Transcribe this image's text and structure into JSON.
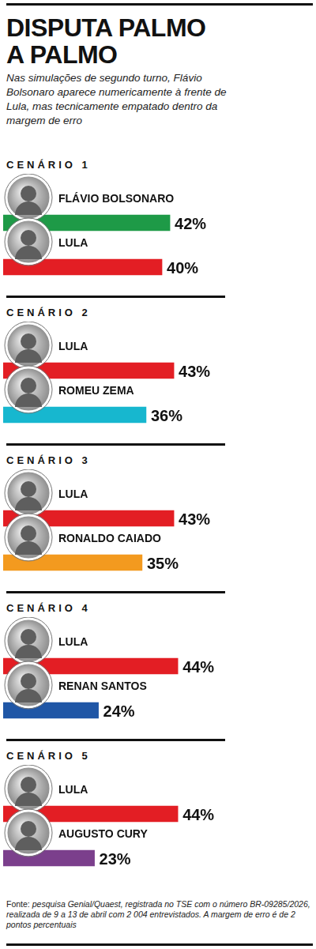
{
  "title": "DISPUTA PALMO A PALMO",
  "subtitle": "Nas simulações de segundo turno, Flávio Bolsonaro aparece numericamente à frente de Lula, mas tecnicamente empatado dentro da margem de erro",
  "footer": {
    "label": "Fonte:",
    "text": "pesquisa Genial/Quaest, registrada no TSE com o número BR-09285/2026, realizada de 9 a 13 de abril com 2 004 entrevistados. A margem de erro é de 2 pontos percentuais"
  },
  "chart_data": [
    {
      "type": "bar",
      "title": "CENÁRIO 1",
      "orientation": "horizontal",
      "categories": [
        "FLÁVIO BOLSONARO",
        "LULA"
      ],
      "values": [
        42,
        40
      ],
      "value_labels": [
        "42%",
        "40%"
      ],
      "colors": [
        "#1e9a47",
        "#e31e24"
      ],
      "xlim": [
        0,
        78
      ],
      "grid": false,
      "tick_labels": false,
      "data_labels": true
    },
    {
      "type": "bar",
      "title": "CENÁRIO 2",
      "orientation": "horizontal",
      "categories": [
        "LULA",
        "ROMEU ZEMA"
      ],
      "values": [
        43,
        36
      ],
      "value_labels": [
        "43%",
        "36%"
      ],
      "colors": [
        "#e31e24",
        "#17b7cf"
      ],
      "xlim": [
        0,
        78
      ],
      "grid": false,
      "tick_labels": false,
      "data_labels": true
    },
    {
      "type": "bar",
      "title": "CENÁRIO 3",
      "orientation": "horizontal",
      "categories": [
        "LULA",
        "RONALDO CAIADO"
      ],
      "values": [
        43,
        35
      ],
      "value_labels": [
        "43%",
        "35%"
      ],
      "colors": [
        "#e31e24",
        "#f39a1f"
      ],
      "xlim": [
        0,
        78
      ],
      "grid": false,
      "tick_labels": false,
      "data_labels": true
    },
    {
      "type": "bar",
      "title": "CENÁRIO 4",
      "orientation": "horizontal",
      "categories": [
        "LULA",
        "RENAN SANTOS"
      ],
      "values": [
        44,
        24
      ],
      "value_labels": [
        "44%",
        "24%"
      ],
      "colors": [
        "#e31e24",
        "#1f56a6"
      ],
      "xlim": [
        0,
        78
      ],
      "grid": false,
      "tick_labels": false,
      "data_labels": true
    },
    {
      "type": "bar",
      "title": "CENÁRIO 5",
      "orientation": "horizontal",
      "categories": [
        "LULA",
        "AUGUSTO CURY"
      ],
      "values": [
        44,
        23
      ],
      "value_labels": [
        "44%",
        "23%"
      ],
      "colors": [
        "#e31e24",
        "#7b3f8c"
      ],
      "xlim": [
        0,
        78
      ],
      "grid": false,
      "tick_labels": false,
      "data_labels": true
    }
  ]
}
